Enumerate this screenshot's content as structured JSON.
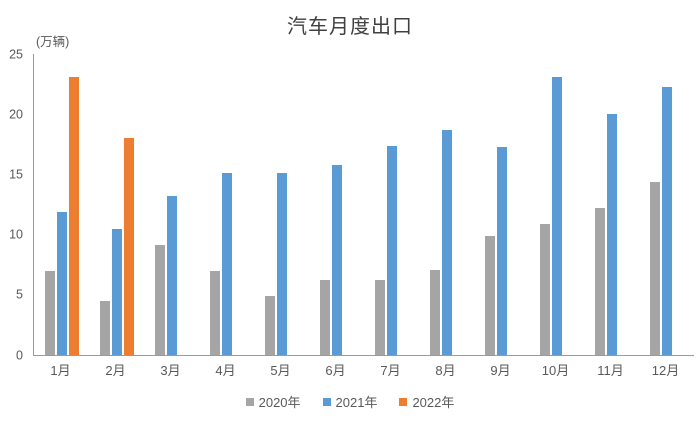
{
  "chart_data": {
    "type": "bar",
    "title": "汽车月度出口",
    "unit_label": "(万辆)",
    "categories": [
      "1月",
      "2月",
      "3月",
      "4月",
      "5月",
      "6月",
      "7月",
      "8月",
      "9月",
      "10月",
      "11月",
      "12月"
    ],
    "series": [
      {
        "name": "2020年",
        "color": "#A5A5A5",
        "values": [
          7.0,
          4.5,
          9.1,
          7.0,
          4.9,
          6.2,
          6.2,
          7.1,
          9.9,
          10.9,
          12.2,
          14.4
        ]
      },
      {
        "name": "2021年",
        "color": "#5B9BD5",
        "values": [
          11.9,
          10.5,
          13.2,
          15.1,
          15.1,
          15.8,
          17.4,
          18.7,
          17.3,
          23.1,
          20.0,
          22.3
        ]
      },
      {
        "name": "2022年",
        "color": "#ED7D31",
        "values": [
          23.1,
          18.0,
          null,
          null,
          null,
          null,
          null,
          null,
          null,
          null,
          null,
          null
        ]
      }
    ],
    "yticks": [
      0,
      5,
      10,
      15,
      20,
      25
    ],
    "ylim": [
      0,
      25
    ],
    "xlabel": "",
    "ylabel": "",
    "grid": false,
    "legend_position": "bottom"
  }
}
